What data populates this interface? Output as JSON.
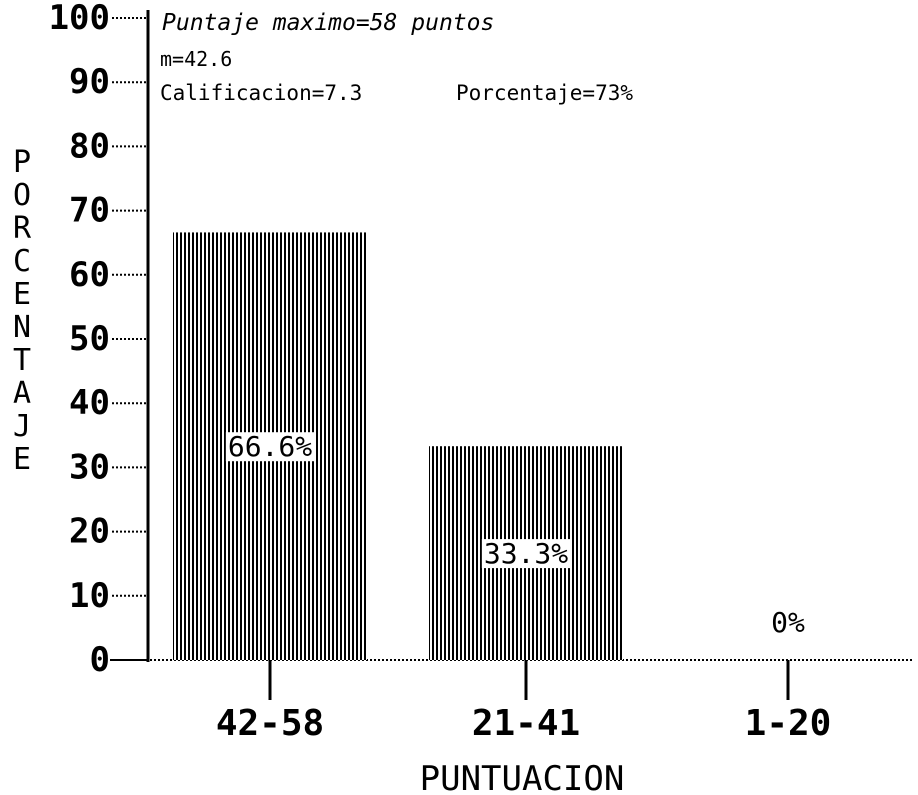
{
  "chart_data": {
    "type": "bar",
    "title": "",
    "xlabel": "PUNTUACION",
    "ylabel": "PORCENTAJE",
    "ylim": [
      0,
      100
    ],
    "yticks": [
      "0",
      "10",
      "20",
      "30",
      "40",
      "50",
      "60",
      "70",
      "80",
      "90",
      "100"
    ],
    "categories": [
      "42-58",
      "21-41",
      "1-20"
    ],
    "values": [
      66.6,
      33.3,
      0
    ],
    "value_labels": [
      "66.6%",
      "33.3%",
      "0%"
    ],
    "annotations": {
      "max_score": "Puntaje maximo=58 puntos",
      "mean": "m=42.6",
      "grade": "Calificacion=7.3",
      "percentage": "Porcentaje=73%"
    },
    "grid": false,
    "legend": "none",
    "bar_fill": "vertical-hatch",
    "color": "#000000"
  }
}
